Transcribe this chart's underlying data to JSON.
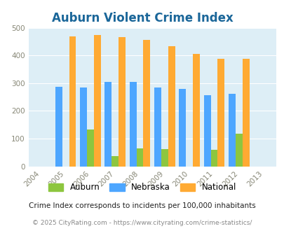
{
  "title": "Auburn Violent Crime Index",
  "years": [
    2004,
    2005,
    2006,
    2007,
    2008,
    2009,
    2010,
    2011,
    2012,
    2013
  ],
  "data_years": [
    2005,
    2006,
    2007,
    2008,
    2009,
    2010,
    2011,
    2012
  ],
  "auburn": [
    0,
    133,
    37,
    65,
    63,
    0,
    60,
    118
  ],
  "nebraska": [
    288,
    284,
    304,
    304,
    284,
    280,
    256,
    262
  ],
  "national": [
    469,
    474,
    467,
    455,
    433,
    405,
    387,
    387
  ],
  "auburn_color": "#8dc63f",
  "nebraska_color": "#4da6ff",
  "national_color": "#ffaa33",
  "bg_color": "#ddeef6",
  "ylim": [
    0,
    500
  ],
  "yticks": [
    0,
    100,
    200,
    300,
    400,
    500
  ],
  "bar_width": 0.28,
  "legend_labels": [
    "Auburn",
    "Nebraska",
    "National"
  ],
  "subtitle": "Crime Index corresponds to incidents per 100,000 inhabitants",
  "footer": "© 2025 CityRating.com - https://www.cityrating.com/crime-statistics/",
  "title_color": "#1a6699",
  "subtitle_color": "#222222",
  "footer_color": "#888888"
}
